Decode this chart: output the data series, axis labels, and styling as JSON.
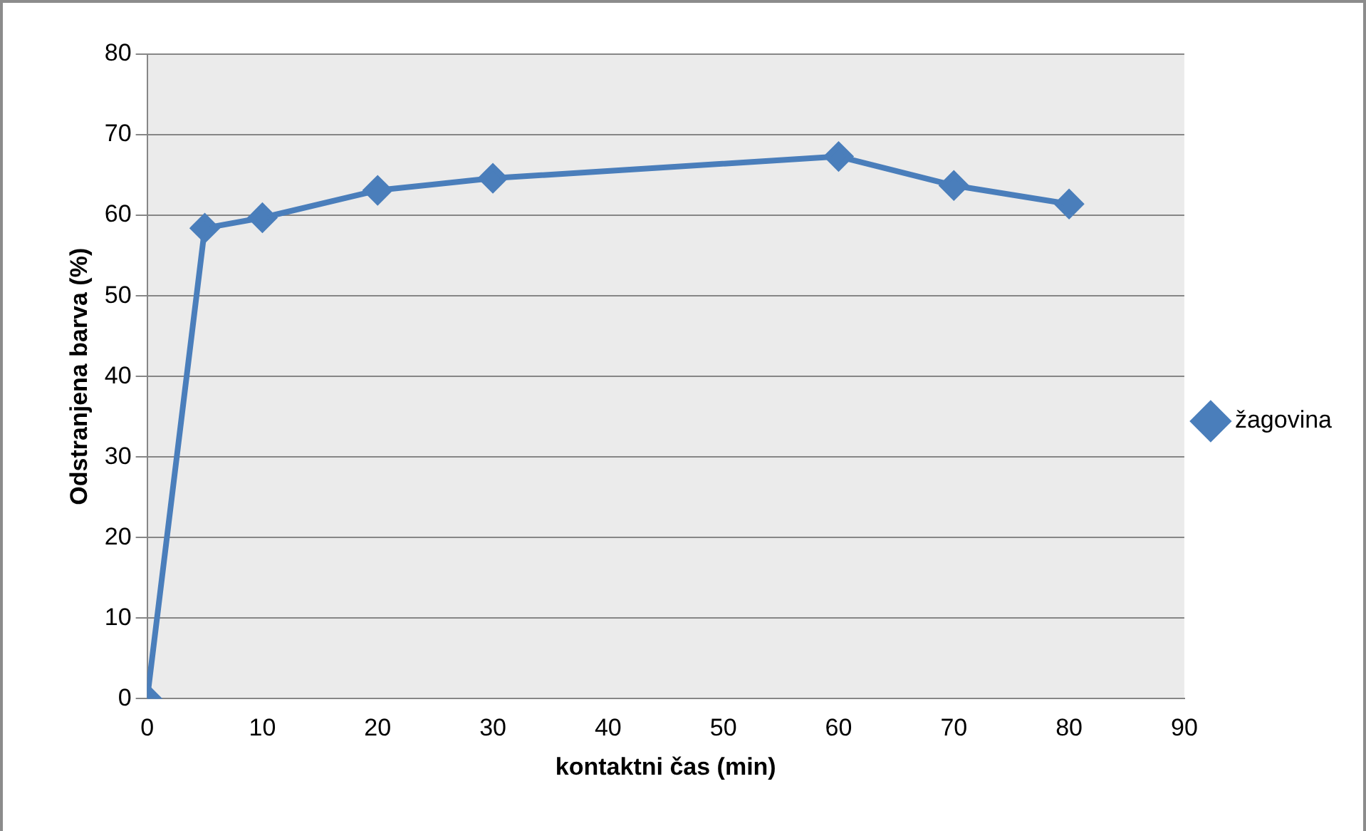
{
  "chart_data": {
    "type": "line",
    "xlabel": "kontaktni čas (min)",
    "ylabel": "Odstranjena barva (%)",
    "x": [
      0,
      5,
      10,
      20,
      30,
      60,
      70,
      80
    ],
    "series": [
      {
        "name": "žagovina",
        "color": "#4a7ebb",
        "values": [
          0,
          58.4,
          59.7,
          63.1,
          64.6,
          67.3,
          63.7,
          61.4
        ]
      }
    ],
    "xlim": [
      0,
      90
    ],
    "xticks": [
      0,
      10,
      20,
      30,
      40,
      50,
      60,
      70,
      80,
      90
    ],
    "ylim": [
      0,
      80
    ],
    "yticks": [
      0,
      10,
      20,
      30,
      40,
      50,
      60,
      70,
      80
    ],
    "grid": "y",
    "legend": "right",
    "marker": "diamond",
    "line_style": "solid"
  }
}
